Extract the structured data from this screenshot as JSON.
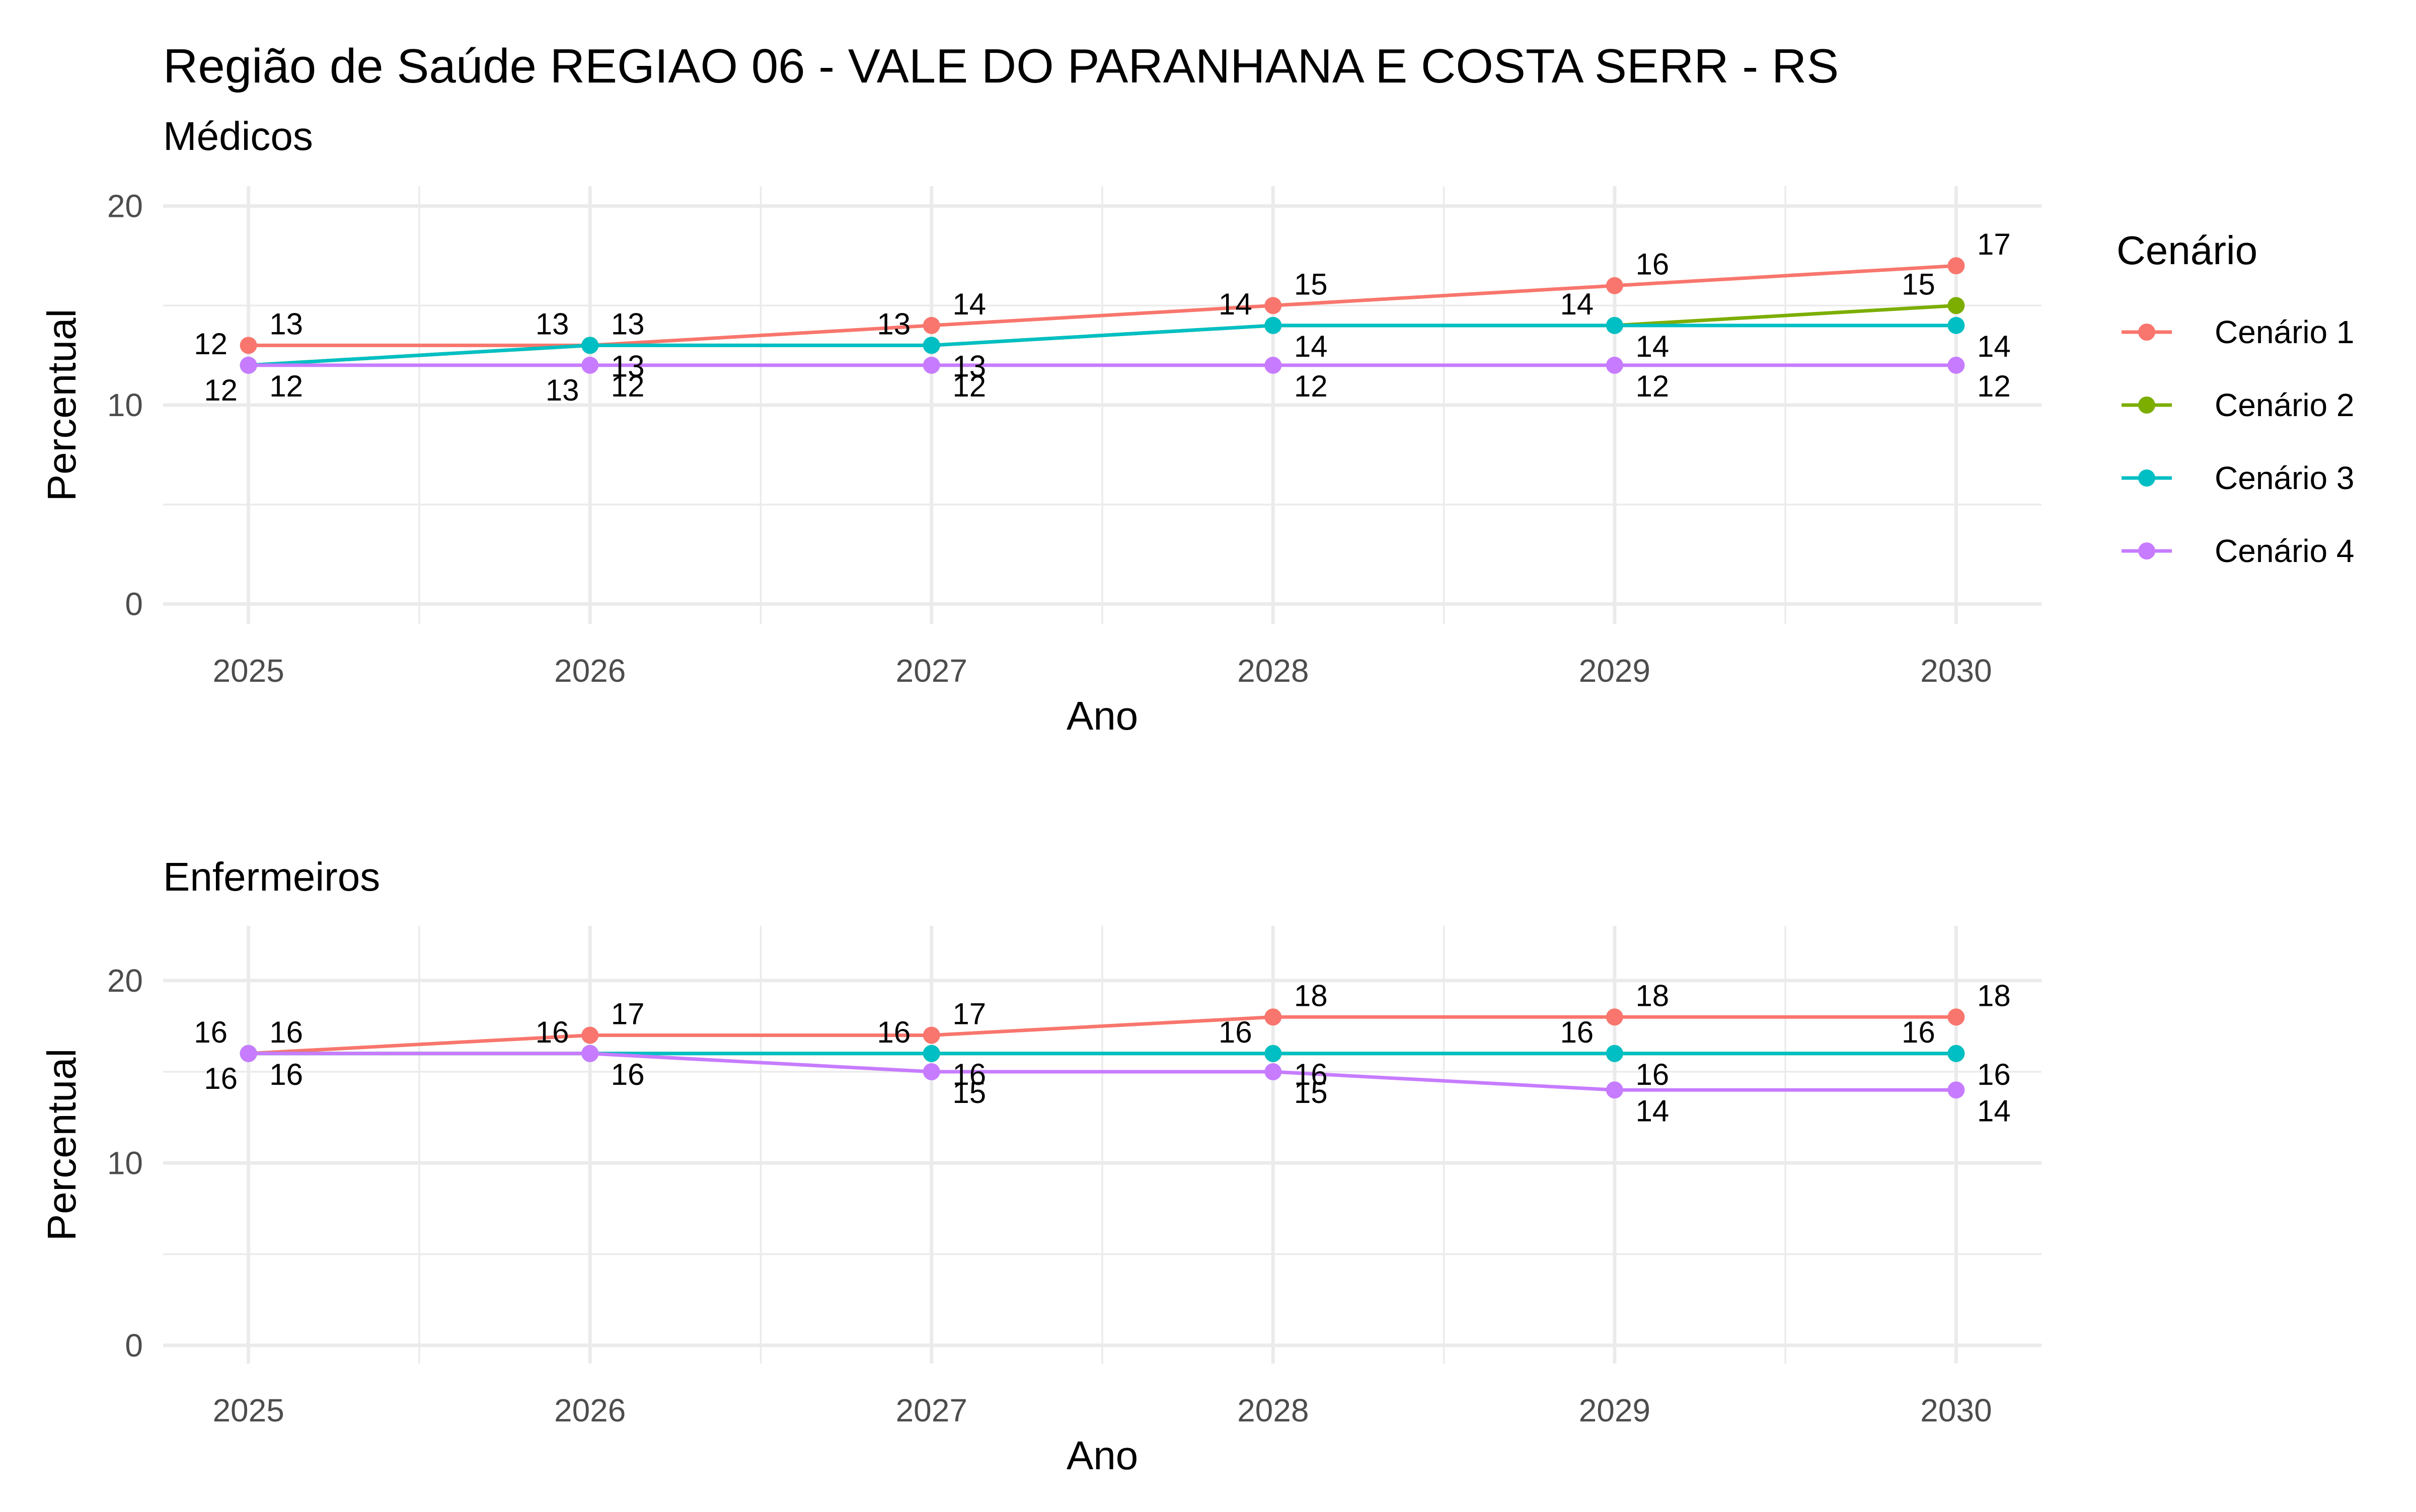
{
  "title": "Região de Saúde REGIAO 06 - VALE DO PARANHANA E COSTA SERR - RS",
  "legend": {
    "title": "Cenário",
    "placement": "right",
    "entries": [
      {
        "name": "Cenário 1",
        "color": "#F8766D"
      },
      {
        "name": "Cenário 2",
        "color": "#7CAE00"
      },
      {
        "name": "Cenário 3",
        "color": "#00BFC4"
      },
      {
        "name": "Cenário 4",
        "color": "#C77CFF"
      }
    ]
  },
  "chart_data": [
    {
      "type": "line",
      "subtitle": "Médicos",
      "xlabel": "Ano",
      "ylabel": "Percentual",
      "x": [
        2025,
        2026,
        2027,
        2028,
        2029,
        2030
      ],
      "x_ticks": [
        "2025",
        "2026",
        "2027",
        "2028",
        "2029",
        "2030"
      ],
      "y_ticks": [
        "0",
        "10",
        "20"
      ],
      "xlim": [
        2024.75,
        2030.25
      ],
      "ylim": [
        -1,
        21
      ],
      "grid": true,
      "series": [
        {
          "name": "Cenário 1",
          "values": [
            13,
            13,
            14,
            15,
            16,
            17
          ],
          "labels": [
            "13",
            "13",
            "14",
            "15",
            "16",
            "17"
          ]
        },
        {
          "name": "Cenário 2",
          "values": [
            12,
            13,
            13,
            14,
            14,
            15
          ],
          "labels": [
            "12",
            "13",
            "13",
            "14",
            "14",
            "15"
          ]
        },
        {
          "name": "Cenário 3",
          "values": [
            12,
            13,
            13,
            14,
            14,
            14
          ],
          "labels": [
            "12",
            "13",
            "13",
            "14",
            "14",
            "14"
          ]
        },
        {
          "name": "Cenário 4",
          "values": [
            12,
            12,
            12,
            12,
            12,
            12
          ],
          "labels": [
            "12",
            "12",
            "12",
            "12",
            "12",
            "12"
          ]
        }
      ],
      "extra_labels": [
        {
          "x": 2025,
          "y": 12,
          "text": "12"
        },
        {
          "x": 2026,
          "y": 12,
          "text": "13"
        }
      ]
    },
    {
      "type": "line",
      "subtitle": "Enfermeiros",
      "xlabel": "Ano",
      "ylabel": "Percentual",
      "x": [
        2025,
        2026,
        2027,
        2028,
        2029,
        2030
      ],
      "x_ticks": [
        "2025",
        "2026",
        "2027",
        "2028",
        "2029",
        "2030"
      ],
      "y_ticks": [
        "0",
        "10",
        "20"
      ],
      "xlim": [
        2024.75,
        2030.25
      ],
      "ylim": [
        -1,
        23
      ],
      "grid": true,
      "series": [
        {
          "name": "Cenário 1",
          "values": [
            16,
            17,
            17,
            18,
            18,
            18
          ],
          "labels": [
            "16",
            "17",
            "17",
            "18",
            "18",
            "18"
          ]
        },
        {
          "name": "Cenário 2",
          "values": [
            16,
            16,
            16,
            16,
            16,
            16
          ],
          "labels": [
            "16",
            "16",
            "16",
            "16",
            "16",
            "16"
          ]
        },
        {
          "name": "Cenário 3",
          "values": [
            16,
            16,
            16,
            16,
            16,
            16
          ],
          "labels": [
            "16",
            "16",
            "16",
            "16",
            "16",
            "16"
          ]
        },
        {
          "name": "Cenário 4",
          "values": [
            16,
            16,
            15,
            15,
            14,
            14
          ],
          "labels": [
            "16",
            "16",
            "15",
            "15",
            "14",
            "14"
          ]
        }
      ],
      "extra_labels": [
        {
          "x": 2025,
          "y": 16,
          "text": "16"
        }
      ]
    }
  ]
}
